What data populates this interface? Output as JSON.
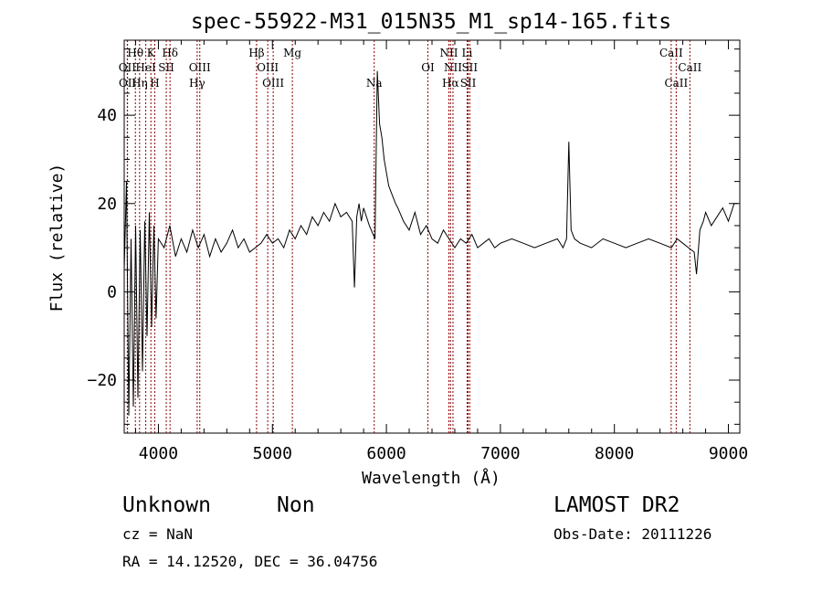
{
  "chart_data": {
    "type": "line",
    "title": "spec-55922-M31_015N35_M1_sp14-165.fits",
    "xlabel": "Wavelength (Å)",
    "ylabel": "Flux (relative)",
    "xlim": [
      3700,
      9100
    ],
    "ylim": [
      -32,
      57
    ],
    "x_ticks": [
      4000,
      5000,
      6000,
      7000,
      8000,
      9000
    ],
    "y_ticks": [
      -20,
      0,
      20,
      40
    ],
    "x_tick_labels": [
      "4000",
      "5000",
      "6000",
      "7000",
      "8000",
      "9000"
    ],
    "y_tick_labels": [
      "−20",
      "0",
      "20",
      "40"
    ],
    "line_color": "#000000",
    "marker_color": "#8b0000",
    "series": [
      {
        "x": [
          3700,
          3720,
          3740,
          3760,
          3780,
          3800,
          3820,
          3840,
          3860,
          3880,
          3900,
          3920,
          3940,
          3960,
          3980,
          4000,
          4050,
          4100,
          4150,
          4200,
          4250,
          4300,
          4350,
          4400,
          4450,
          4500,
          4550,
          4600,
          4650,
          4700,
          4750,
          4800,
          4850,
          4900,
          4950,
          5000,
          5050,
          5100,
          5150,
          5200,
          5250,
          5300,
          5350,
          5400,
          5450,
          5500,
          5550,
          5600,
          5650,
          5700,
          5720,
          5740,
          5760,
          5780,
          5800,
          5850,
          5900,
          5920,
          5940,
          5960,
          5980,
          6000,
          6020,
          6050,
          6080,
          6100,
          6150,
          6200,
          6250,
          6300,
          6350,
          6400,
          6450,
          6500,
          6550,
          6600,
          6650,
          6700,
          6750,
          6800,
          6850,
          6900,
          6950,
          7000,
          7100,
          7200,
          7300,
          7400,
          7500,
          7550,
          7580,
          7600,
          7620,
          7650,
          7700,
          7800,
          7900,
          8000,
          8100,
          8200,
          8300,
          8400,
          8500,
          8550,
          8600,
          8650,
          8700,
          8720,
          8750,
          8780,
          8800,
          8850,
          8900,
          8950,
          9000,
          9050,
          9080
        ],
        "y": [
          5,
          25,
          -28,
          12,
          -26,
          15,
          -24,
          14,
          -18,
          16,
          -10,
          18,
          -8,
          15,
          -6,
          12,
          10,
          15,
          8,
          12,
          9,
          14,
          10,
          13,
          8,
          12,
          9,
          11,
          14,
          10,
          12,
          9,
          10,
          11,
          13,
          11,
          12,
          10,
          14,
          12,
          15,
          13,
          17,
          15,
          18,
          16,
          20,
          17,
          18,
          16,
          1,
          17,
          20,
          16,
          19,
          15,
          12,
          50,
          38,
          35,
          30,
          27,
          24,
          22,
          20,
          19,
          16,
          14,
          18,
          13,
          15,
          12,
          11,
          14,
          12,
          10,
          12,
          11,
          13,
          10,
          11,
          12,
          10,
          11,
          12,
          11,
          10,
          11,
          12,
          10,
          12,
          34,
          14,
          12,
          11,
          10,
          12,
          11,
          10,
          11,
          12,
          11,
          10,
          12,
          11,
          10,
          9,
          4,
          14,
          16,
          18,
          15,
          17,
          19,
          16,
          20,
          20
        ]
      }
    ],
    "line_markers": [
      {
        "label": "Hθ",
        "x": 3798,
        "row": 1
      },
      {
        "label": "K",
        "x": 3934,
        "row": 1
      },
      {
        "label": "Hδ",
        "x": 4102,
        "row": 1
      },
      {
        "label": "Hβ",
        "x": 4861,
        "row": 1
      },
      {
        "label": "Mg",
        "x": 5175,
        "row": 1
      },
      {
        "label": "NII",
        "x": 6548,
        "row": 1
      },
      {
        "label": "Li",
        "x": 6708,
        "row": 1
      },
      {
        "label": "CaII",
        "x": 8498,
        "row": 1
      },
      {
        "label": "OII",
        "x": 3727,
        "row": 2
      },
      {
        "label": "HeI",
        "x": 3889,
        "row": 2
      },
      {
        "label": "SII",
        "x": 4069,
        "row": 2
      },
      {
        "label": "OIII",
        "x": 4363,
        "row": 2
      },
      {
        "label": "OIII",
        "x": 4959,
        "row": 2
      },
      {
        "label": "OI",
        "x": 6364,
        "row": 2
      },
      {
        "label": "NII",
        "x": 6584,
        "row": 2
      },
      {
        "label": "SII",
        "x": 6731,
        "row": 2
      },
      {
        "label": "CaII",
        "x": 8662,
        "row": 2
      },
      {
        "label": "OII",
        "x": 3729,
        "row": 3
      },
      {
        "label": "Hη",
        "x": 3835,
        "row": 3
      },
      {
        "label": "H",
        "x": 3968,
        "row": 3
      },
      {
        "label": "Hγ",
        "x": 4340,
        "row": 3
      },
      {
        "label": "OIII",
        "x": 5007,
        "row": 3
      },
      {
        "label": "Na",
        "x": 5893,
        "row": 3
      },
      {
        "label": "Hα",
        "x": 6563,
        "row": 3
      },
      {
        "label": "SII",
        "x": 6717,
        "row": 3
      },
      {
        "label": "CaII",
        "x": 8542,
        "row": 3
      }
    ]
  },
  "info": {
    "class": "Unknown",
    "subclass": "Non",
    "survey": "LAMOST DR2",
    "cz": "cz = NaN",
    "obs_date": "Obs-Date: 20111226",
    "coords": "RA =  14.12520, DEC =  36.04756"
  }
}
